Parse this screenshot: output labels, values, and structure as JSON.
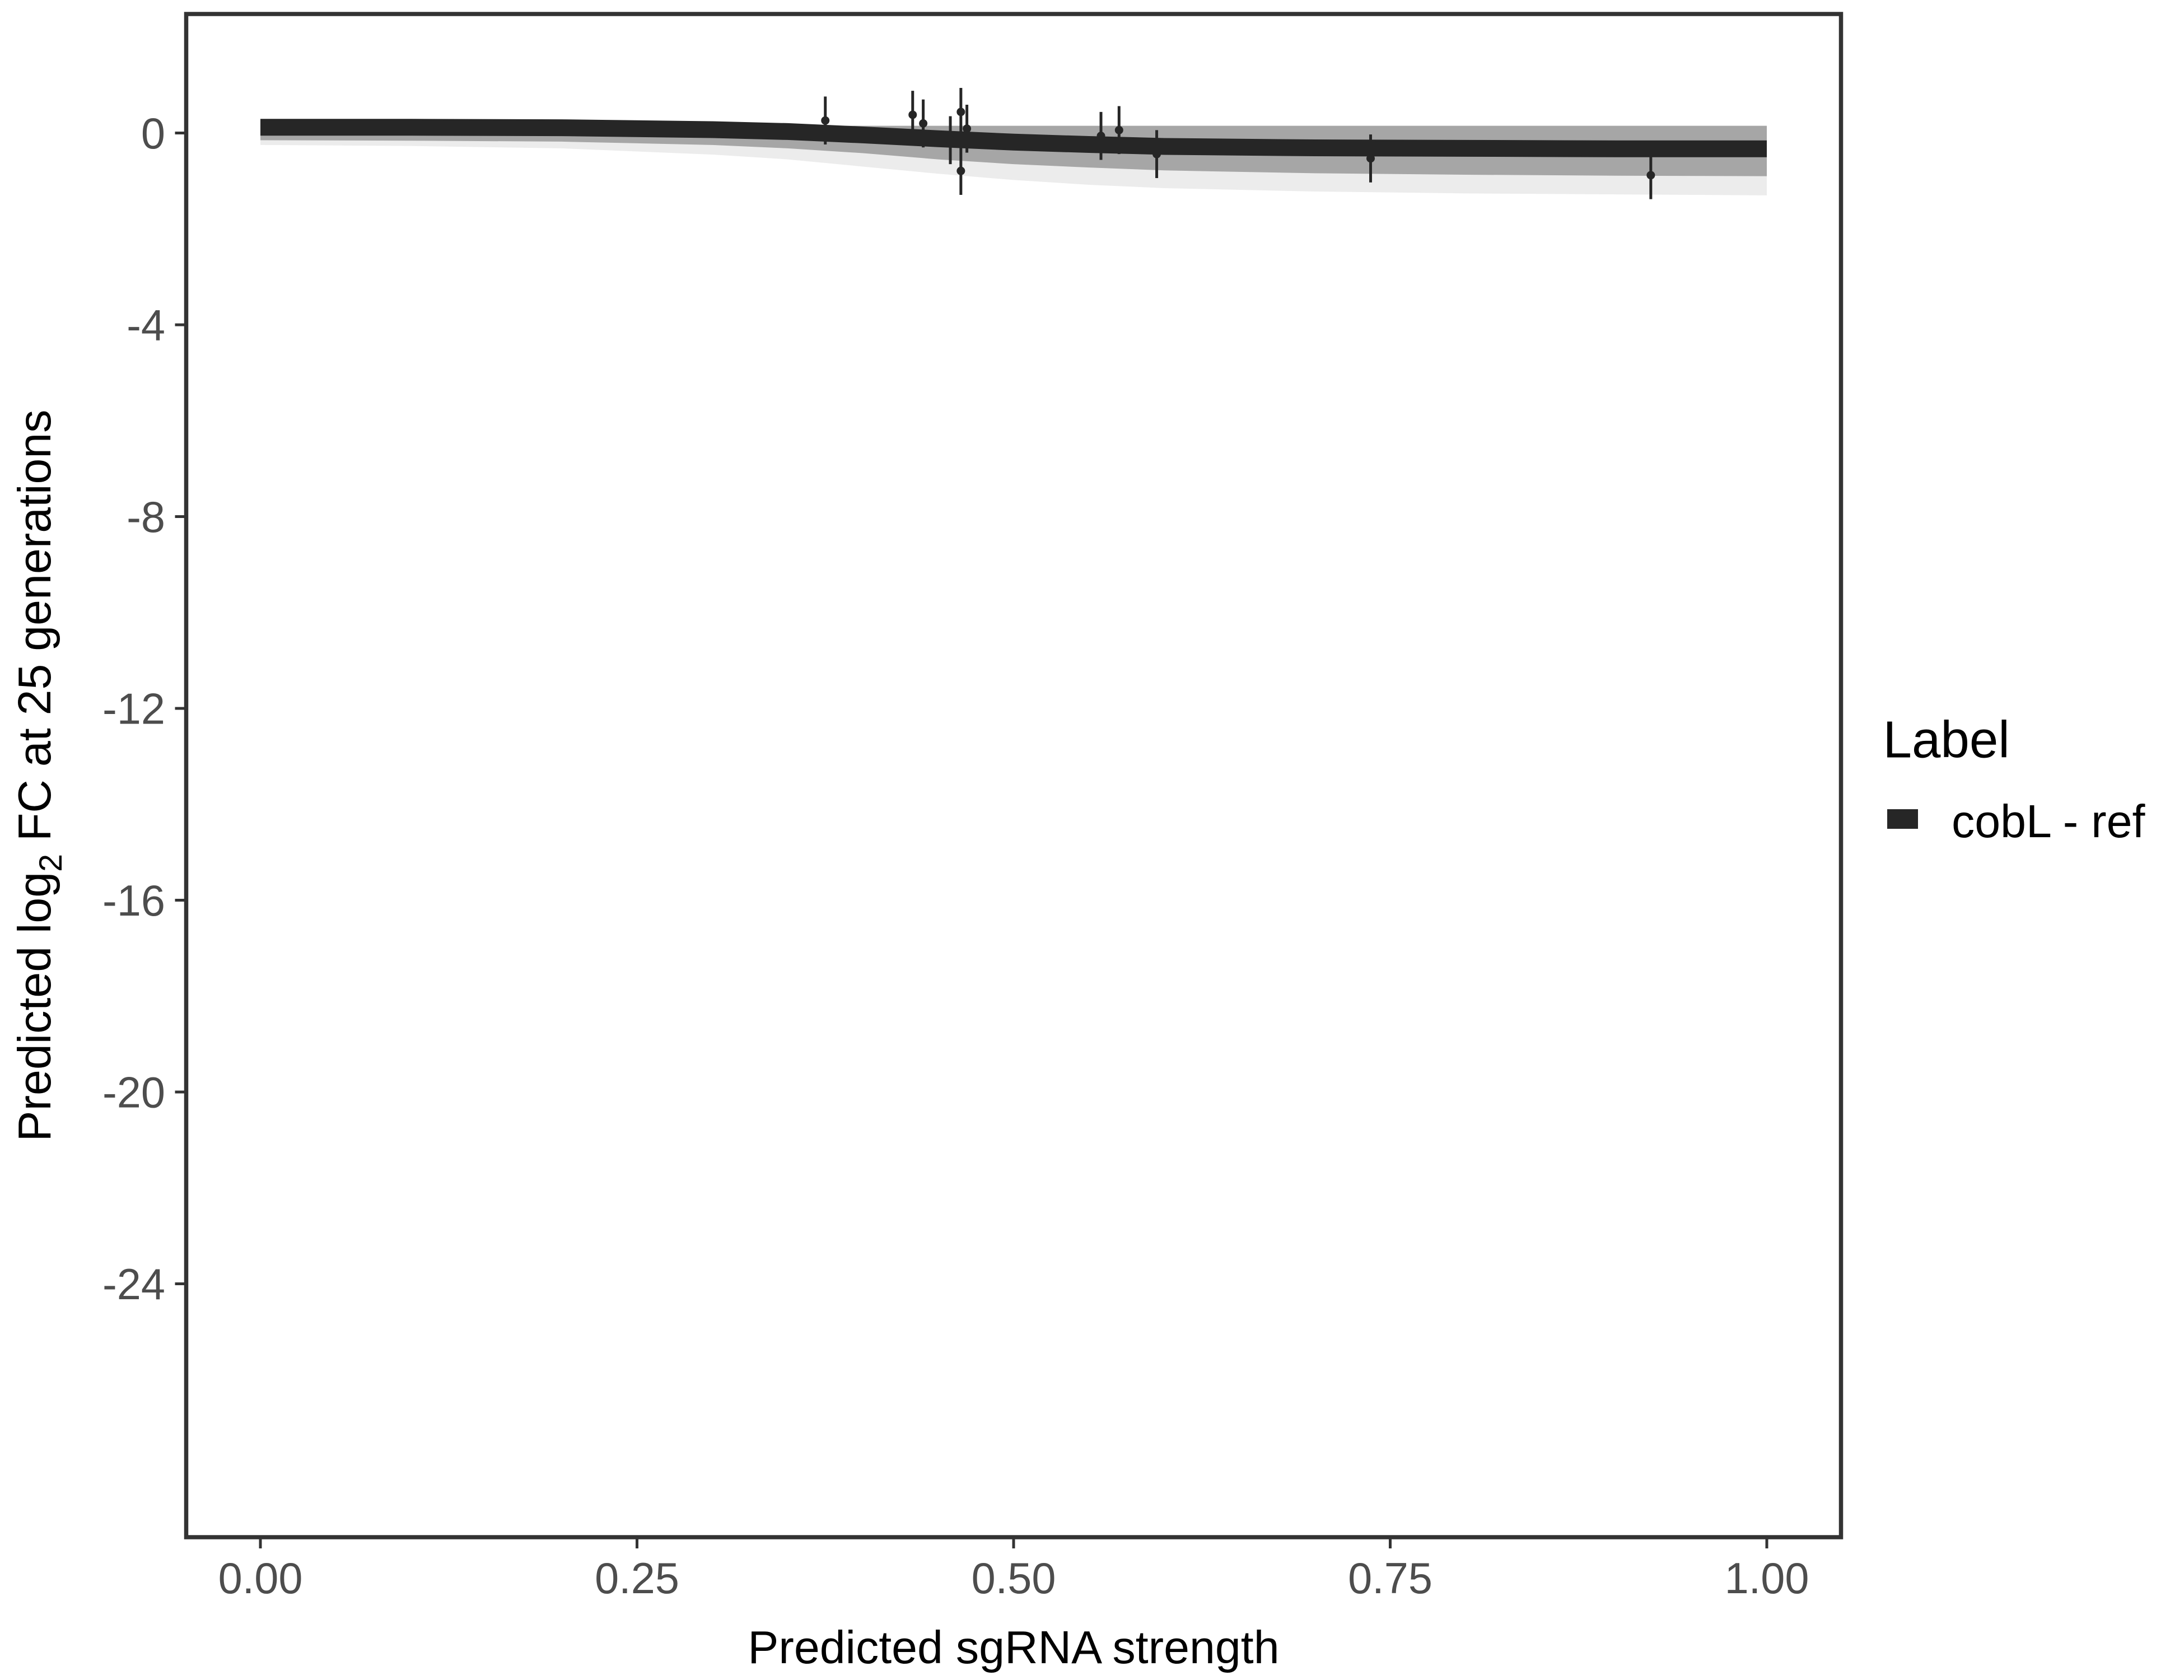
{
  "chart_data": {
    "type": "line",
    "xlabel": "Predicted sgRNA strength",
    "ylabel_parts": {
      "pre": "Predicted  log",
      "sub": "2",
      "post": " FC at 25 generations"
    },
    "xlim": [
      -0.05,
      1.05
    ],
    "ylim": [
      -29.3,
      2.5
    ],
    "x_ticks": [
      0,
      0.25,
      0.5,
      0.75,
      1
    ],
    "x_tick_labels": [
      "0.00",
      "0.25",
      "0.50",
      "0.75",
      "1.00"
    ],
    "y_ticks": [
      0,
      -4,
      -8,
      -12,
      -16,
      -20,
      -24
    ],
    "y_tick_labels": [
      "0",
      "-4",
      "-8",
      "-12",
      "-16",
      "-20",
      "-24"
    ],
    "grid": false,
    "legend": {
      "title": "Label",
      "position": "right",
      "entries": [
        {
          "label": "cobL - ref",
          "color": "#262626"
        }
      ]
    },
    "fit_curve": {
      "name": "cobL - ref",
      "x": [
        0,
        0.1,
        0.2,
        0.3,
        0.35,
        0.4,
        0.45,
        0.5,
        0.55,
        0.6,
        0.7,
        0.8,
        0.9,
        1.0
      ],
      "y": [
        0.12,
        0.12,
        0.11,
        0.07,
        0.03,
        -0.04,
        -0.12,
        -0.19,
        -0.24,
        -0.28,
        -0.31,
        -0.32,
        -0.33,
        -0.33
      ],
      "band_upper": [
        0.15,
        0.15,
        0.15,
        0.15,
        0.15,
        0.15,
        0.15,
        0.15,
        0.15,
        0.15,
        0.15,
        0.15,
        0.15,
        0.15
      ],
      "band_lower": [
        -0.15,
        -0.16,
        -0.18,
        -0.25,
        -0.32,
        -0.42,
        -0.55,
        -0.65,
        -0.72,
        -0.78,
        -0.84,
        -0.87,
        -0.89,
        -0.9
      ],
      "faint_lower": [
        -0.25,
        -0.27,
        -0.32,
        -0.45,
        -0.55,
        -0.7,
        -0.85,
        -0.98,
        -1.08,
        -1.15,
        -1.22,
        -1.26,
        -1.28,
        -1.3
      ],
      "color": "#262626",
      "band_color": "#a6a6a6"
    },
    "points": {
      "x": [
        0.375,
        0.433,
        0.44,
        0.458,
        0.465,
        0.469,
        0.465,
        0.558,
        0.57,
        0.595,
        0.737,
        0.923
      ],
      "y": [
        0.26,
        0.38,
        0.2,
        -0.15,
        0.44,
        0.09,
        -0.79,
        -0.06,
        0.06,
        -0.44,
        -0.53,
        -0.88
      ],
      "err": [
        0.5,
        0.5,
        0.5,
        0.5,
        0.5,
        0.5,
        0.5,
        0.5,
        0.5,
        0.5,
        0.5,
        0.5
      ]
    }
  }
}
